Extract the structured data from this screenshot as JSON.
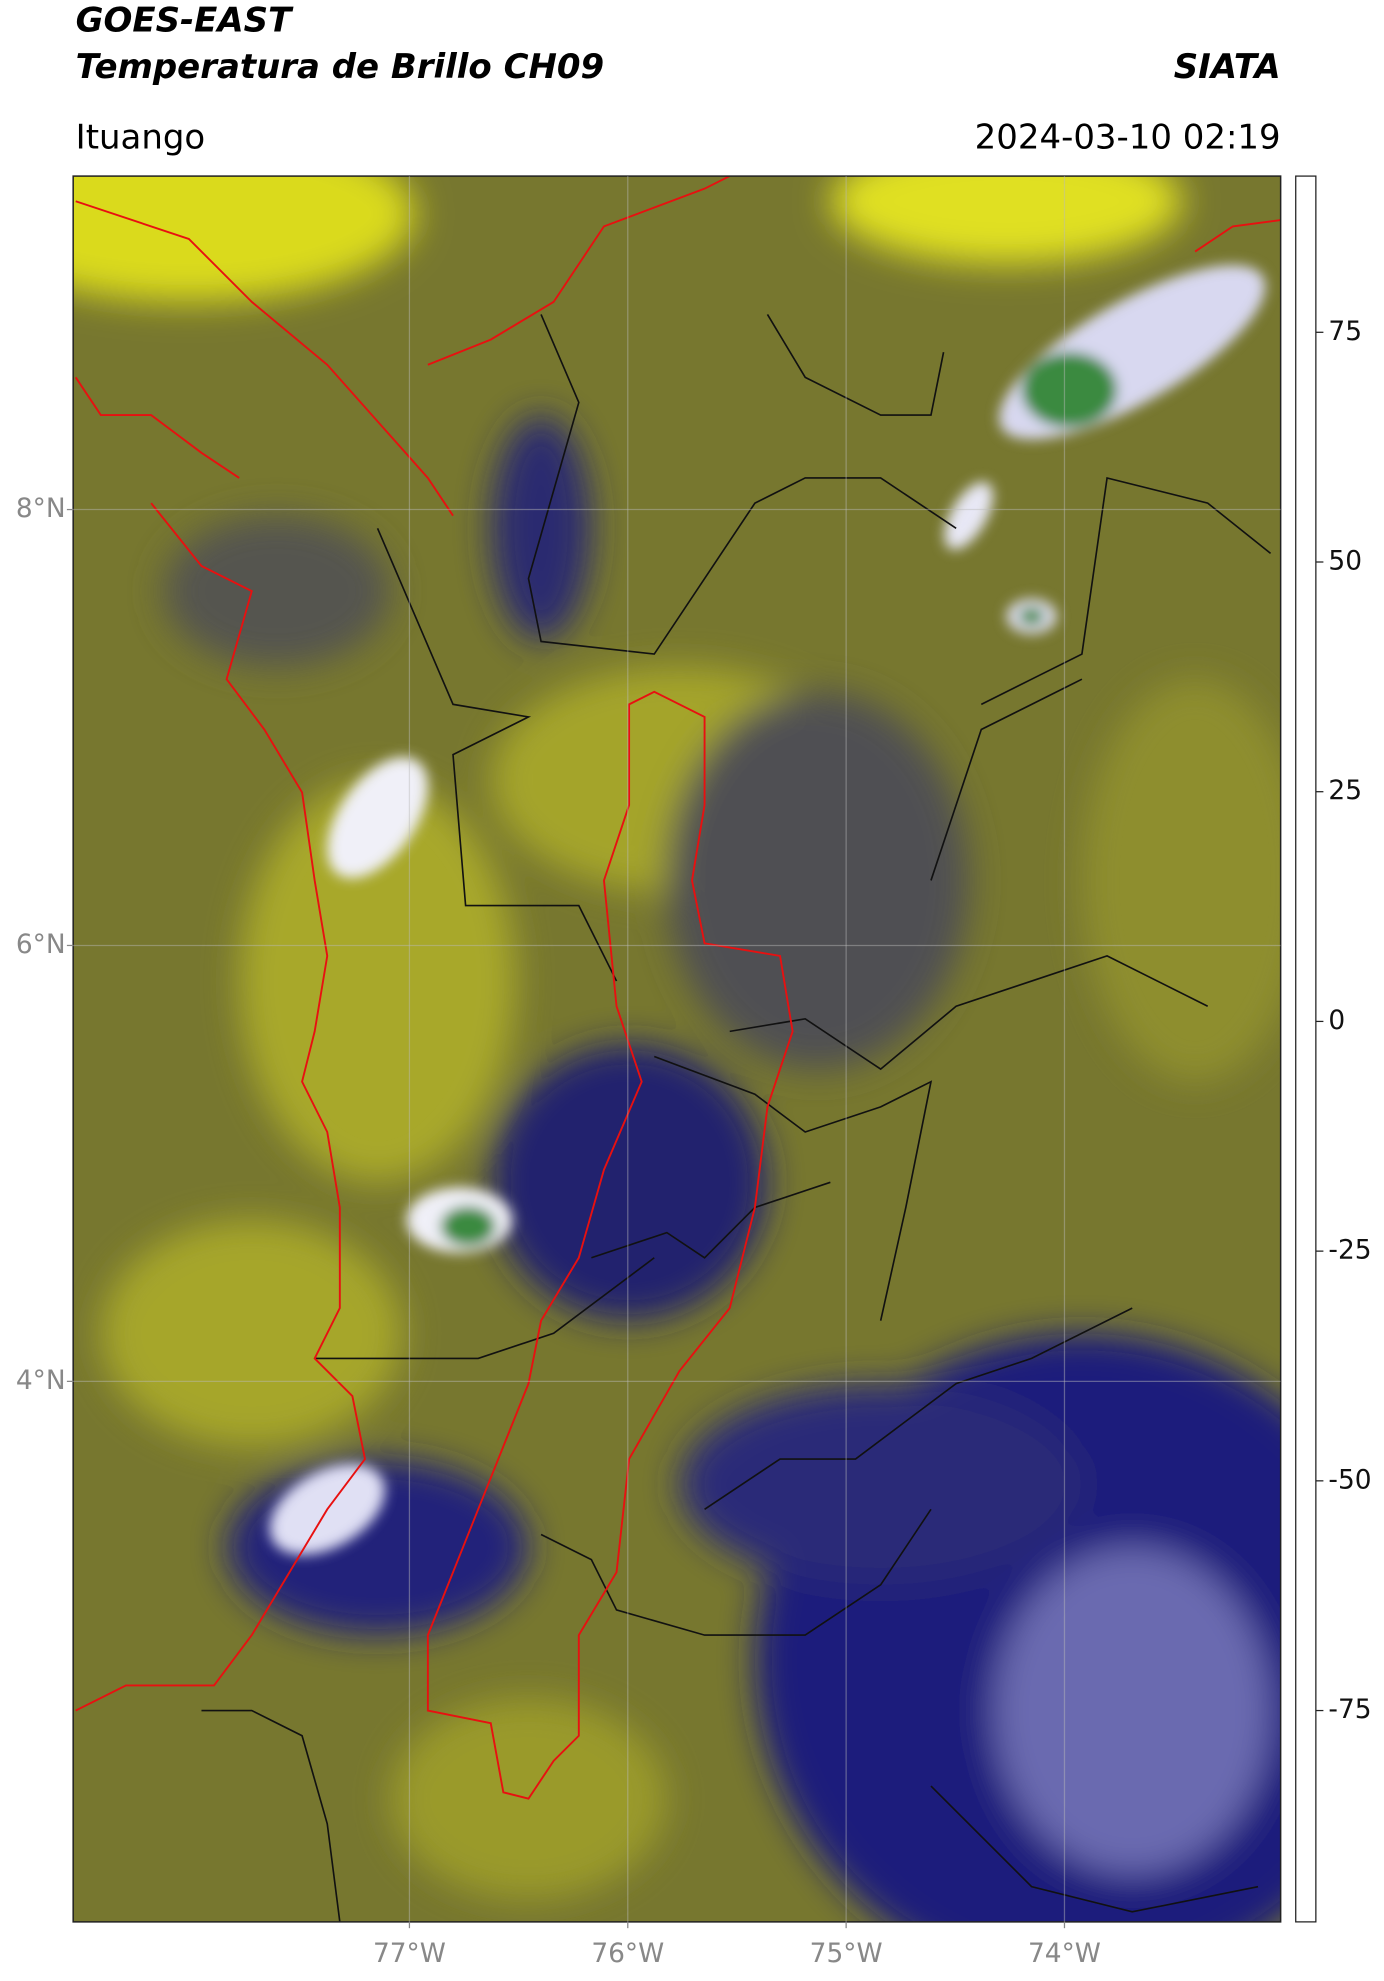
{
  "header": {
    "title_line1": "GOES-EAST",
    "title_line2": "Temperatura de Brillo CH09",
    "brand": "SIATA",
    "location": "Ituango",
    "datetime": "2024-03-10 02:19"
  },
  "map": {
    "lonlim": [
      -78.54,
      -73.01
    ],
    "latlim": [
      1.52,
      9.53
    ],
    "lon_ticks": [
      {
        "value": -77,
        "label": "77°W"
      },
      {
        "value": -76,
        "label": "76°W"
      },
      {
        "value": -75,
        "label": "75°W"
      },
      {
        "value": -74,
        "label": "74°W"
      }
    ],
    "lat_ticks": [
      {
        "value": 8,
        "label": "8°N"
      },
      {
        "value": 6,
        "label": "6°N"
      },
      {
        "value": 4,
        "label": "4°N"
      }
    ],
    "grid": true
  },
  "colorbar": {
    "lim": [
      -98,
      92
    ],
    "ticks": [
      75,
      50,
      25,
      0,
      -25,
      -50,
      -75
    ],
    "stops": [
      [
        -98,
        "#ffffff"
      ],
      [
        -96.5,
        "#ffffff"
      ],
      [
        -96,
        "#00e5e0"
      ],
      [
        -85,
        "#1f9f8f"
      ],
      [
        -70,
        "#2e8b3a"
      ],
      [
        -60,
        "#9ac58a"
      ],
      [
        -52,
        "#ffffff"
      ],
      [
        -42,
        "#8a8ac8"
      ],
      [
        -32,
        "#1c1c86"
      ],
      [
        -26,
        "#1a1a66"
      ],
      [
        -22,
        "#555550"
      ],
      [
        -15,
        "#9a9a30"
      ],
      [
        -10,
        "#ffff00"
      ],
      [
        0,
        "#ff9a00"
      ],
      [
        7.5,
        "#ff0000"
      ],
      [
        8,
        "#000000"
      ],
      [
        92,
        "#000000"
      ]
    ]
  }
}
